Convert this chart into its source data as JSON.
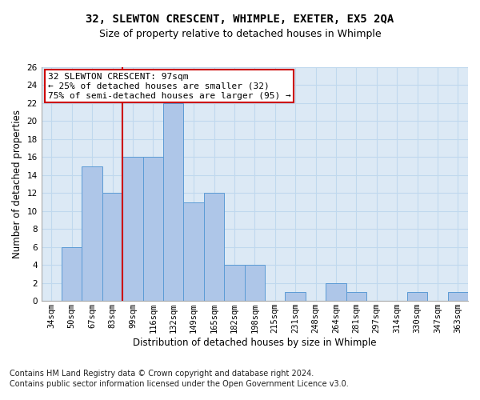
{
  "title": "32, SLEWTON CRESCENT, WHIMPLE, EXETER, EX5 2QA",
  "subtitle": "Size of property relative to detached houses in Whimple",
  "xlabel": "Distribution of detached houses by size in Whimple",
  "ylabel": "Number of detached properties",
  "categories": [
    "34sqm",
    "50sqm",
    "67sqm",
    "83sqm",
    "99sqm",
    "116sqm",
    "132sqm",
    "149sqm",
    "165sqm",
    "182sqm",
    "198sqm",
    "215sqm",
    "231sqm",
    "248sqm",
    "264sqm",
    "281sqm",
    "297sqm",
    "314sqm",
    "330sqm",
    "347sqm",
    "363sqm"
  ],
  "values": [
    0,
    6,
    15,
    12,
    16,
    16,
    22,
    11,
    12,
    4,
    4,
    0,
    1,
    0,
    2,
    1,
    0,
    0,
    1,
    0,
    1
  ],
  "bar_color": "#aec6e8",
  "bar_edge_color": "#5b9bd5",
  "vline_x_index": 4,
  "vline_color": "#cc0000",
  "annotation_text": "32 SLEWTON CRESCENT: 97sqm\n← 25% of detached houses are smaller (32)\n75% of semi-detached houses are larger (95) →",
  "annotation_box_color": "#ffffff",
  "annotation_box_edge_color": "#cc0000",
  "ylim": [
    0,
    26
  ],
  "yticks": [
    0,
    2,
    4,
    6,
    8,
    10,
    12,
    14,
    16,
    18,
    20,
    22,
    24,
    26
  ],
  "grid_color": "#c0d8ee",
  "background_color": "#dce9f5",
  "footer_line1": "Contains HM Land Registry data © Crown copyright and database right 2024.",
  "footer_line2": "Contains public sector information licensed under the Open Government Licence v3.0.",
  "title_fontsize": 10,
  "subtitle_fontsize": 9,
  "axis_label_fontsize": 8.5,
  "tick_fontsize": 7.5,
  "footer_fontsize": 7,
  "annotation_fontsize": 8
}
